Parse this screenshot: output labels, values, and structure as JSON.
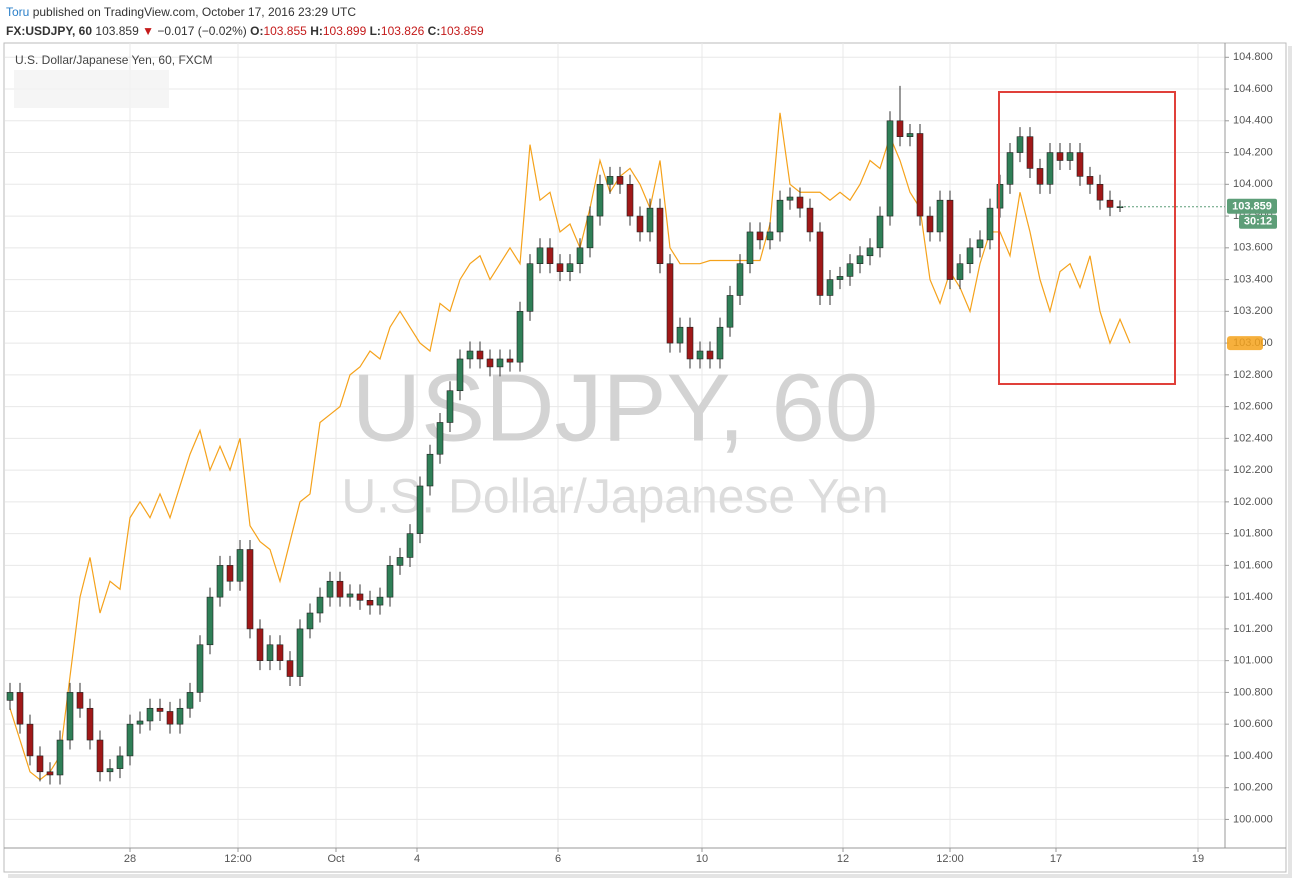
{
  "header": {
    "author": "Toru",
    "published": "published on TradingView.com, October 17, 2016 23:29 UTC"
  },
  "chart_data": {
    "type": "candlestick",
    "title": "U.S. Dollar/Japanese Yen, 60, FXCM",
    "symbol": "FX:USDJPY, 60",
    "change_arrow": "▼",
    "change": "−0.017 (−0.02%)",
    "ohlc_labels": [
      "O:",
      "H:",
      "L:",
      "C:"
    ],
    "watermark": "USDJPY, 60",
    "watermark_subtitle": "U.S. Dollar/Japanese Yen",
    "timer": "30:12",
    "grid": true,
    "xlim": [
      -0.5,
      121.5
    ],
    "xticks": [
      {
        "value": 12,
        "label": "28"
      },
      {
        "value": 22.8,
        "label": "12:00"
      },
      {
        "value": 32.6,
        "label": "Oct"
      },
      {
        "value": 40.7,
        "label": "4"
      },
      {
        "value": 54.8,
        "label": "6"
      },
      {
        "value": 69.2,
        "label": "10"
      },
      {
        "value": 83.3,
        "label": "12"
      },
      {
        "value": 94,
        "label": "12:00"
      },
      {
        "value": 104.6,
        "label": "17"
      },
      {
        "value": 118.8,
        "label": "19"
      }
    ],
    "ylim": [
      99.82,
      104.89
    ],
    "yticks": [
      {
        "value": 100,
        "label": "100.000"
      },
      {
        "value": 100.2,
        "label": "100.200"
      },
      {
        "value": 100.4,
        "label": "100.400"
      },
      {
        "value": 100.6,
        "label": "100.600"
      },
      {
        "value": 100.8,
        "label": "100.800"
      },
      {
        "value": 101,
        "label": "101.000"
      },
      {
        "value": 101.2,
        "label": "101.200"
      },
      {
        "value": 101.4,
        "label": "101.400"
      },
      {
        "value": 101.6,
        "label": "101.600"
      },
      {
        "value": 101.8,
        "label": "101.800"
      },
      {
        "value": 102,
        "label": "102.000"
      },
      {
        "value": 102.2,
        "label": "102.200"
      },
      {
        "value": 102.4,
        "label": "102.400"
      },
      {
        "value": 102.6,
        "label": "102.600"
      },
      {
        "value": 102.8,
        "label": "102.800"
      },
      {
        "value": 103,
        "label": "103.000"
      },
      {
        "value": 103.2,
        "label": "103.200"
      },
      {
        "value": 103.4,
        "label": "103.400"
      },
      {
        "value": 103.6,
        "label": "103.600"
      },
      {
        "value": 103.8,
        "label": "103.800"
      },
      {
        "value": 104,
        "label": "104.000"
      },
      {
        "value": 104.2,
        "label": "104.200"
      },
      {
        "value": 104.4,
        "label": "104.400"
      },
      {
        "value": 104.6,
        "label": "104.600"
      },
      {
        "value": 104.8,
        "label": "104.800"
      }
    ],
    "series": [
      {
        "type": "candlestick",
        "up_color": "#2f7f57",
        "down_color": "#a01818",
        "wick_color": "#333333",
        "label_color": "#5d9e78",
        "open": [
          100.75,
          100.8,
          100.6,
          100.4,
          100.3,
          100.28,
          100.5,
          100.8,
          100.7,
          100.5,
          100.3,
          100.32,
          100.4,
          100.6,
          100.62,
          100.7,
          100.68,
          100.6,
          100.7,
          100.8,
          101.1,
          101.4,
          101.6,
          101.5,
          101.7,
          101.2,
          101.0,
          101.1,
          101.0,
          100.9,
          101.2,
          101.3,
          101.4,
          101.5,
          101.4,
          101.42,
          101.38,
          101.35,
          101.4,
          101.6,
          101.65,
          101.8,
          102.1,
          102.3,
          102.5,
          102.7,
          102.9,
          102.95,
          102.9,
          102.85,
          102.9,
          102.88,
          103.2,
          103.5,
          103.6,
          103.5,
          103.45,
          103.5,
          103.6,
          103.8,
          104.0,
          104.05,
          104.0,
          103.8,
          103.7,
          103.85,
          103.5,
          103.0,
          103.1,
          102.9,
          102.95,
          102.9,
          103.1,
          103.3,
          103.5,
          103.7,
          103.65,
          103.7,
          103.9,
          103.92,
          103.85,
          103.7,
          103.3,
          103.4,
          103.42,
          103.5,
          103.55,
          103.6,
          103.8,
          104.4,
          104.3,
          104.32,
          103.8,
          103.7,
          103.9,
          103.4,
          103.5,
          103.6,
          103.65,
          103.85,
          104.0,
          104.2,
          104.3,
          104.1,
          104.0,
          104.2,
          104.15,
          104.2,
          104.05,
          104.0,
          103.9,
          103.855
        ],
        "high": [
          100.86,
          100.86,
          100.66,
          100.46,
          100.36,
          100.56,
          100.86,
          100.86,
          100.76,
          100.56,
          100.38,
          100.46,
          100.66,
          100.68,
          100.76,
          100.76,
          100.74,
          100.76,
          100.86,
          101.16,
          101.46,
          101.66,
          101.66,
          101.76,
          101.76,
          101.26,
          101.16,
          101.16,
          101.06,
          101.26,
          101.36,
          101.46,
          101.56,
          101.56,
          101.48,
          101.48,
          101.44,
          101.46,
          101.66,
          101.71,
          101.86,
          102.16,
          102.36,
          102.56,
          102.76,
          102.96,
          103.01,
          103.01,
          102.96,
          102.96,
          102.96,
          103.26,
          103.56,
          103.66,
          103.66,
          103.56,
          103.56,
          103.66,
          103.86,
          104.06,
          104.11,
          104.11,
          104.06,
          103.86,
          103.91,
          103.91,
          103.56,
          103.16,
          103.16,
          103.01,
          103.01,
          103.16,
          103.36,
          103.56,
          103.76,
          103.76,
          103.76,
          103.96,
          103.98,
          103.98,
          103.91,
          103.76,
          103.46,
          103.48,
          103.56,
          103.61,
          103.66,
          103.86,
          104.46,
          104.62,
          104.38,
          104.38,
          103.86,
          103.96,
          103.96,
          103.56,
          103.66,
          103.71,
          103.91,
          104.06,
          104.26,
          104.36,
          104.36,
          104.16,
          104.26,
          104.26,
          104.26,
          104.26,
          104.11,
          104.06,
          103.96,
          103.899
        ],
        "low": [
          100.69,
          100.54,
          100.34,
          100.24,
          100.22,
          100.22,
          100.44,
          100.64,
          100.44,
          100.24,
          100.24,
          100.26,
          100.34,
          100.54,
          100.56,
          100.62,
          100.54,
          100.54,
          100.64,
          100.74,
          101.04,
          101.34,
          101.44,
          101.44,
          101.14,
          100.94,
          100.94,
          100.94,
          100.84,
          100.84,
          101.14,
          101.24,
          101.34,
          101.34,
          101.34,
          101.32,
          101.29,
          101.29,
          101.34,
          101.54,
          101.59,
          101.74,
          102.04,
          102.24,
          102.44,
          102.64,
          102.84,
          102.84,
          102.79,
          102.79,
          102.82,
          102.82,
          103.14,
          103.44,
          103.44,
          103.39,
          103.39,
          103.44,
          103.54,
          103.74,
          103.94,
          103.94,
          103.74,
          103.64,
          103.64,
          103.44,
          102.94,
          102.94,
          102.84,
          102.84,
          102.84,
          102.84,
          103.04,
          103.24,
          103.44,
          103.59,
          103.59,
          103.64,
          103.84,
          103.79,
          103.64,
          103.24,
          103.24,
          103.34,
          103.36,
          103.44,
          103.49,
          103.54,
          103.74,
          104.24,
          104.24,
          103.74,
          103.64,
          103.64,
          103.34,
          103.34,
          103.44,
          103.54,
          103.59,
          103.79,
          103.94,
          104.14,
          104.04,
          103.94,
          103.94,
          104.09,
          104.09,
          103.99,
          103.94,
          103.84,
          103.8,
          103.826
        ],
        "close": [
          100.8,
          100.6,
          100.4,
          100.3,
          100.28,
          100.5,
          100.8,
          100.7,
          100.5,
          100.3,
          100.32,
          100.4,
          100.6,
          100.62,
          100.7,
          100.68,
          100.6,
          100.7,
          100.8,
          101.1,
          101.4,
          101.6,
          101.5,
          101.7,
          101.2,
          101.0,
          101.1,
          101.0,
          100.9,
          101.2,
          101.3,
          101.4,
          101.5,
          101.4,
          101.42,
          101.38,
          101.35,
          101.4,
          101.6,
          101.65,
          101.8,
          102.1,
          102.3,
          102.5,
          102.7,
          102.9,
          102.95,
          102.9,
          102.85,
          102.9,
          102.88,
          103.2,
          103.5,
          103.6,
          103.5,
          103.45,
          103.5,
          103.6,
          103.8,
          104.0,
          104.05,
          104.0,
          103.8,
          103.7,
          103.85,
          103.5,
          103.0,
          103.1,
          102.9,
          102.95,
          102.9,
          103.1,
          103.3,
          103.5,
          103.7,
          103.65,
          103.7,
          103.9,
          103.92,
          103.85,
          103.7,
          103.3,
          103.4,
          103.42,
          103.5,
          103.55,
          103.6,
          103.8,
          104.4,
          104.3,
          104.32,
          103.8,
          103.7,
          103.9,
          103.4,
          103.5,
          103.6,
          103.65,
          103.85,
          104.0,
          104.2,
          104.3,
          104.1,
          104.0,
          104.2,
          104.15,
          104.2,
          104.05,
          104.0,
          103.9,
          103.855,
          103.859
        ]
      },
      {
        "type": "line",
        "color": "#f5a21b",
        "values": [
          100.7,
          100.5,
          100.3,
          100.25,
          100.3,
          100.4,
          100.9,
          101.4,
          101.65,
          101.3,
          101.5,
          101.45,
          101.9,
          102.0,
          101.9,
          102.05,
          101.9,
          102.1,
          102.3,
          102.45,
          102.2,
          102.35,
          102.2,
          102.4,
          101.85,
          101.75,
          101.7,
          101.5,
          101.75,
          102.0,
          102.05,
          102.5,
          102.55,
          102.6,
          102.8,
          102.85,
          102.95,
          102.9,
          103.1,
          103.2,
          103.1,
          103.0,
          102.95,
          103.25,
          103.2,
          103.4,
          103.5,
          103.55,
          103.4,
          103.5,
          103.6,
          103.5,
          104.25,
          103.9,
          103.95,
          103.7,
          103.75,
          103.6,
          103.85,
          104.15,
          103.95,
          104.05,
          104.1,
          104.0,
          103.85,
          104.15,
          103.6,
          103.5,
          103.5,
          103.5,
          103.52,
          103.52,
          103.52,
          103.52,
          103.52,
          103.52,
          103.75,
          104.45,
          104.0,
          103.95,
          103.95,
          103.95,
          103.9,
          103.95,
          103.9,
          104.0,
          104.15,
          104.1,
          104.3,
          104.15,
          103.95,
          103.85,
          103.4,
          103.25,
          103.45,
          103.35,
          103.2,
          103.5,
          103.7,
          103.7,
          103.55,
          103.95,
          103.7,
          103.4,
          103.2,
          103.45,
          103.5,
          103.35,
          103.55,
          103.2,
          103.0,
          103.15,
          103.0
        ]
      }
    ]
  }
}
